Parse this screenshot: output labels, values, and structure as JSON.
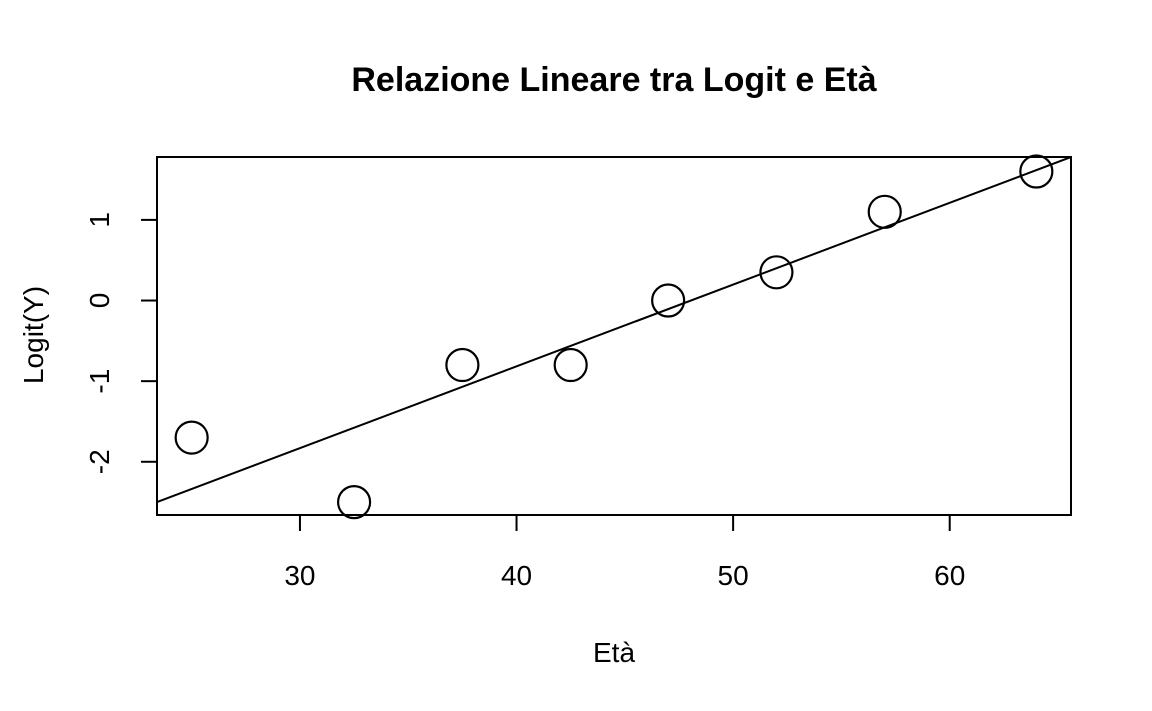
{
  "chart_data": {
    "type": "scatter",
    "title": "Relazione Lineare tra Logit e Età",
    "xlabel": "Età",
    "ylabel": "Logit(Y)",
    "xlim": [
      23.4,
      65.6
    ],
    "ylim": [
      -2.66,
      1.78
    ],
    "x_ticks": [
      30,
      40,
      50,
      60
    ],
    "x_tick_labels": [
      "30",
      "40",
      "50",
      "60"
    ],
    "y_ticks": [
      -2,
      -1,
      0,
      1
    ],
    "y_tick_labels": [
      "-2",
      "-1",
      "0",
      "1"
    ],
    "grid": false,
    "legend": "none",
    "series": [
      {
        "x": [
          25,
          32.5,
          37.5,
          42.5,
          47,
          52,
          57,
          64
        ],
        "y": [
          -1.7,
          -2.5,
          -0.8,
          -0.8,
          0.0,
          0.35,
          1.1,
          1.6
        ]
      }
    ],
    "fit_line": {
      "x": [
        23.4,
        65.6
      ],
      "y": [
        -2.5,
        1.78
      ]
    },
    "colors": {
      "points_stroke": "#000000",
      "points_fill": "#ffffff",
      "line": "#000000",
      "axes": "#000000"
    }
  }
}
